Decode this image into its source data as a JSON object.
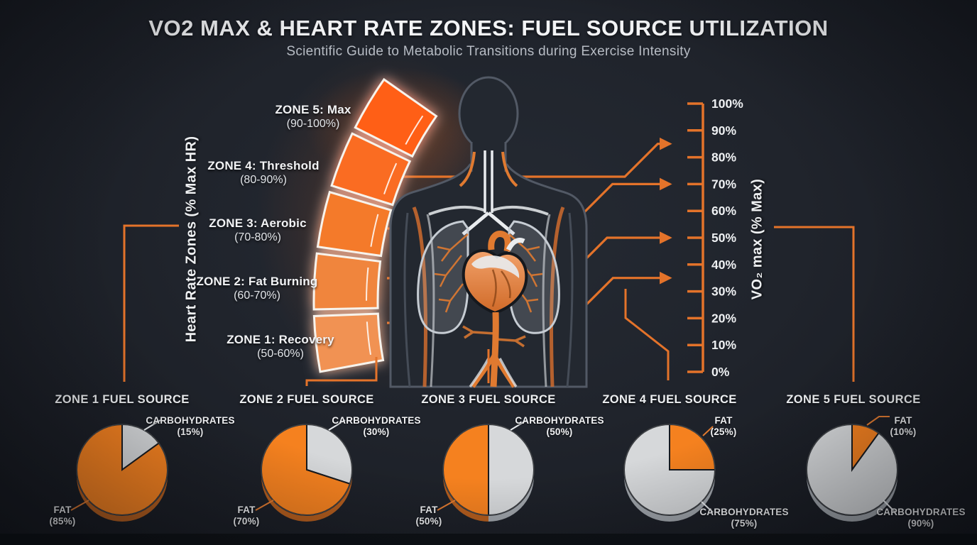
{
  "header": {
    "title": "VO2 MAX & HEART RATE ZONES: FUEL SOURCE UTILIZATION",
    "subtitle": "Scientific Guide to Metabolic Transitions during Exercise Intensity"
  },
  "hr_axis_label": "Heart Rate Zones (% Max HR)",
  "vo2_axis_label": "VO₂ max (% Max)",
  "zones": [
    {
      "label": "ZONE 1: Recovery",
      "range": "(50-60%)",
      "color": "#f19253"
    },
    {
      "label": "ZONE 2: Fat Burning",
      "range": "(60-70%)",
      "color": "#f0853c"
    },
    {
      "label": "ZONE 3: Aerobic",
      "range": "(70-80%)",
      "color": "#f47a2b"
    },
    {
      "label": "ZONE 4: Threshold",
      "range": "(80-90%)",
      "color": "#fa6c20"
    },
    {
      "label": "ZONE 5: Max",
      "range": "(90-100%)",
      "color": "#ff5e16"
    }
  ],
  "vo2_scale": {
    "ticks": [
      "100%",
      "90%",
      "80%",
      "70%",
      "60%",
      "50%",
      "40%",
      "30%",
      "20%",
      "10%",
      "0%"
    ],
    "arrow_targets_pct": [
      85,
      70,
      50,
      35
    ]
  },
  "accent_color": "#e4732a",
  "chart_data": [
    {
      "type": "pie",
      "title": "ZONE 1 FUEL SOURCE",
      "slices": [
        {
          "label": "CARBOHYDRATES",
          "value": 15,
          "display": "(15%)",
          "color": "#d6d8da"
        },
        {
          "label": "FAT",
          "value": 85,
          "display": "(85%)",
          "color": "#f5811f"
        }
      ]
    },
    {
      "type": "pie",
      "title": "ZONE 2 FUEL SOURCE",
      "slices": [
        {
          "label": "CARBOHYDRATES",
          "value": 30,
          "display": "(30%)",
          "color": "#d6d8da"
        },
        {
          "label": "FAT",
          "value": 70,
          "display": "(70%)",
          "color": "#f5811f"
        }
      ]
    },
    {
      "type": "pie",
      "title": "ZONE 3 FUEL SOURCE",
      "slices": [
        {
          "label": "CARBOHYDRATES",
          "value": 50,
          "display": "(50%)",
          "color": "#d6d8da"
        },
        {
          "label": "FAT",
          "value": 50,
          "display": "(50%)",
          "color": "#f5811f"
        }
      ]
    },
    {
      "type": "pie",
      "title": "ZONE 4 FUEL SOURCE",
      "slices": [
        {
          "label": "FAT",
          "value": 25,
          "display": "(25%)",
          "color": "#f5811f"
        },
        {
          "label": "CARBOHYDRATES",
          "value": 75,
          "display": "(75%)",
          "color": "#d6d8da"
        }
      ]
    },
    {
      "type": "pie",
      "title": "ZONE 5 FUEL SOURCE",
      "slices": [
        {
          "label": "FAT",
          "value": 10,
          "display": "(10%)",
          "color": "#f5811f"
        },
        {
          "label": "CARBOHYDRATES",
          "value": 90,
          "display": "(90%)",
          "color": "#d6d8da"
        }
      ]
    }
  ]
}
